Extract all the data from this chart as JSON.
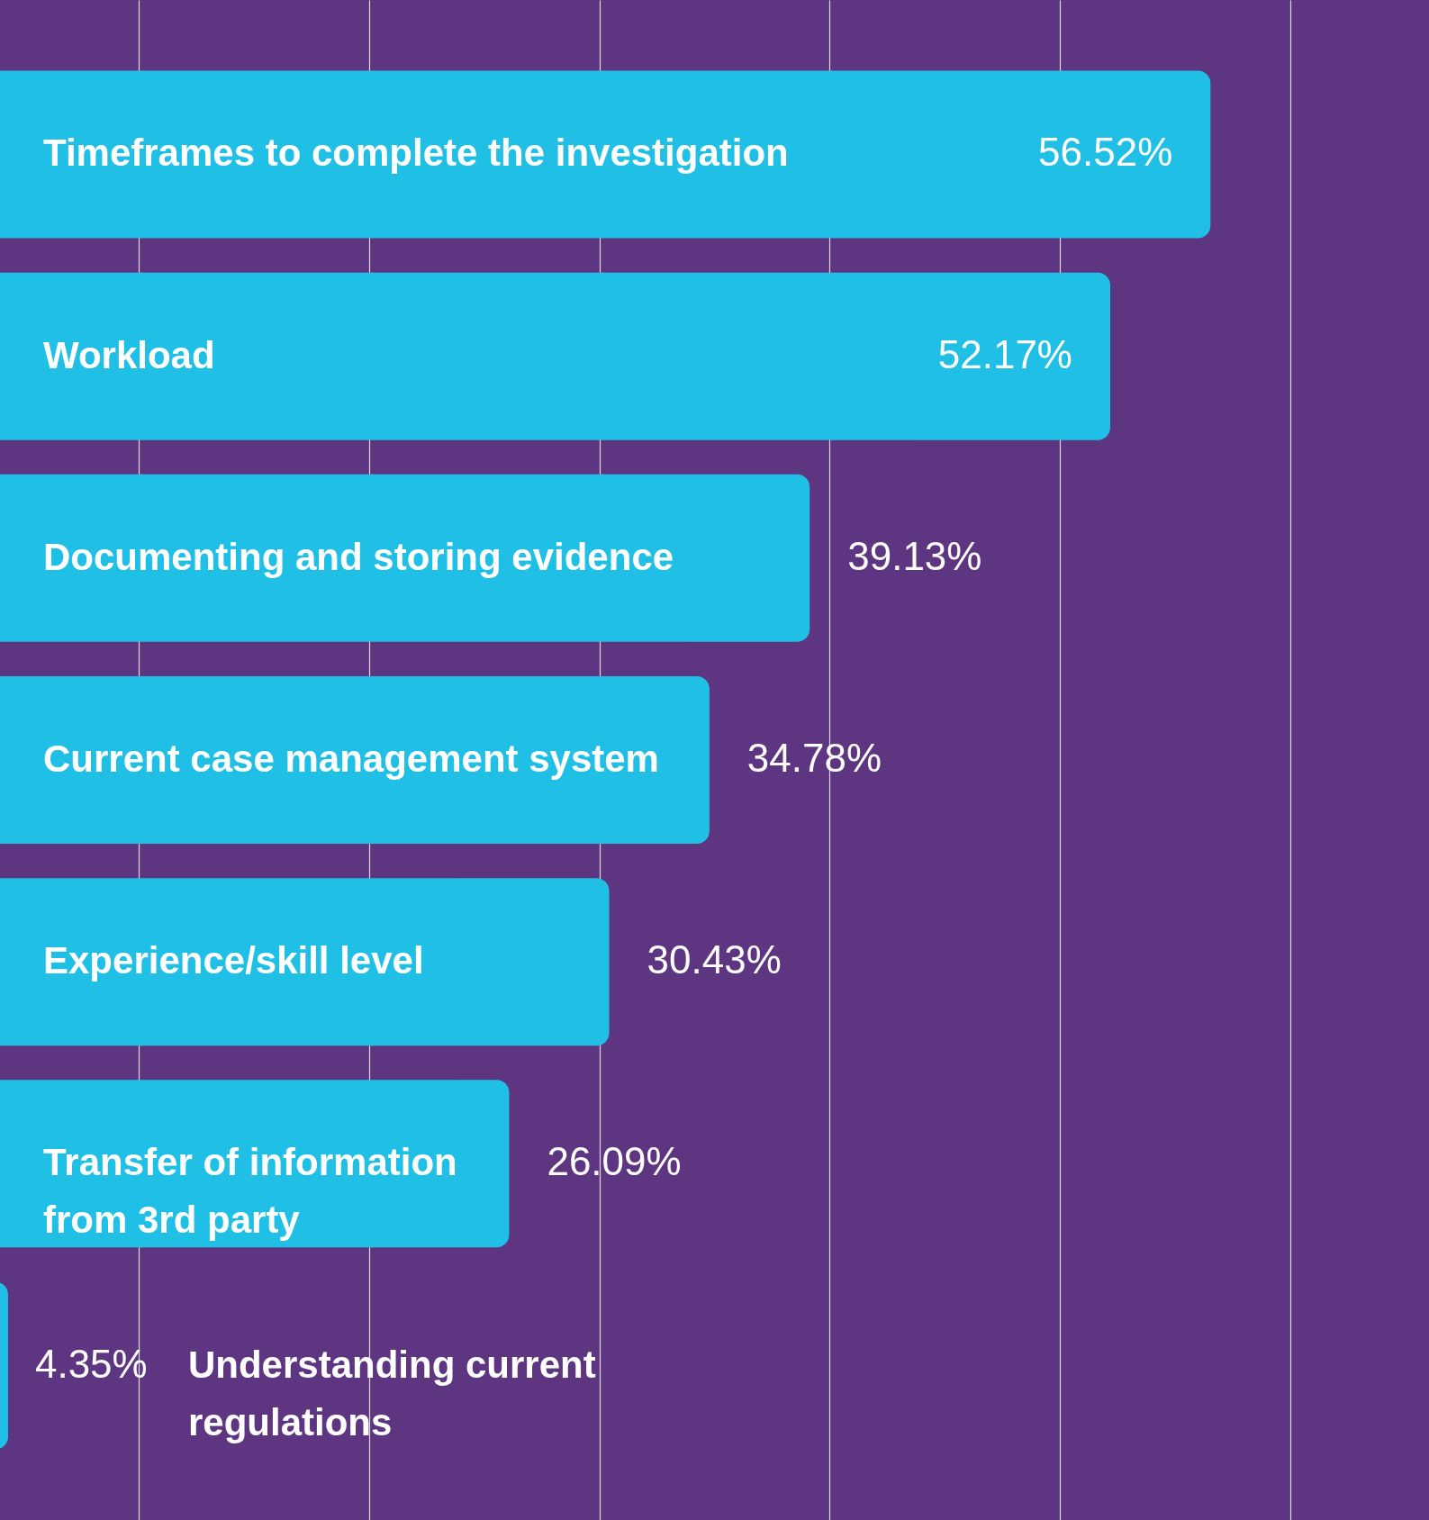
{
  "chart_data": {
    "type": "bar",
    "orientation": "horizontal",
    "categories": [
      "Timeframes to complete the investigation",
      "Workload",
      "Documenting and storing evidence",
      "Current case management system",
      "Experience/skill level",
      "Transfer of information\nfrom 3rd party",
      "Understanding current\nregulations"
    ],
    "values": [
      56.52,
      52.17,
      39.13,
      34.78,
      30.43,
      26.09,
      4.35
    ],
    "value_labels": [
      "56.52%",
      "52.17%",
      "39.13%",
      "34.78%",
      "30.43%",
      "26.09%",
      "4.35%"
    ],
    "color": "#20c0e6",
    "xlim": [
      4,
      66
    ],
    "xticks": [
      {
        "value": 10,
        "label": null
      },
      {
        "value": 20,
        "label": null
      },
      {
        "value": 30,
        "label": null
      },
      {
        "value": 40,
        "label": null
      },
      {
        "value": 50,
        "label": null
      },
      {
        "value": 60,
        "label": null
      }
    ],
    "grid": "x",
    "tick_labels": false
  }
}
